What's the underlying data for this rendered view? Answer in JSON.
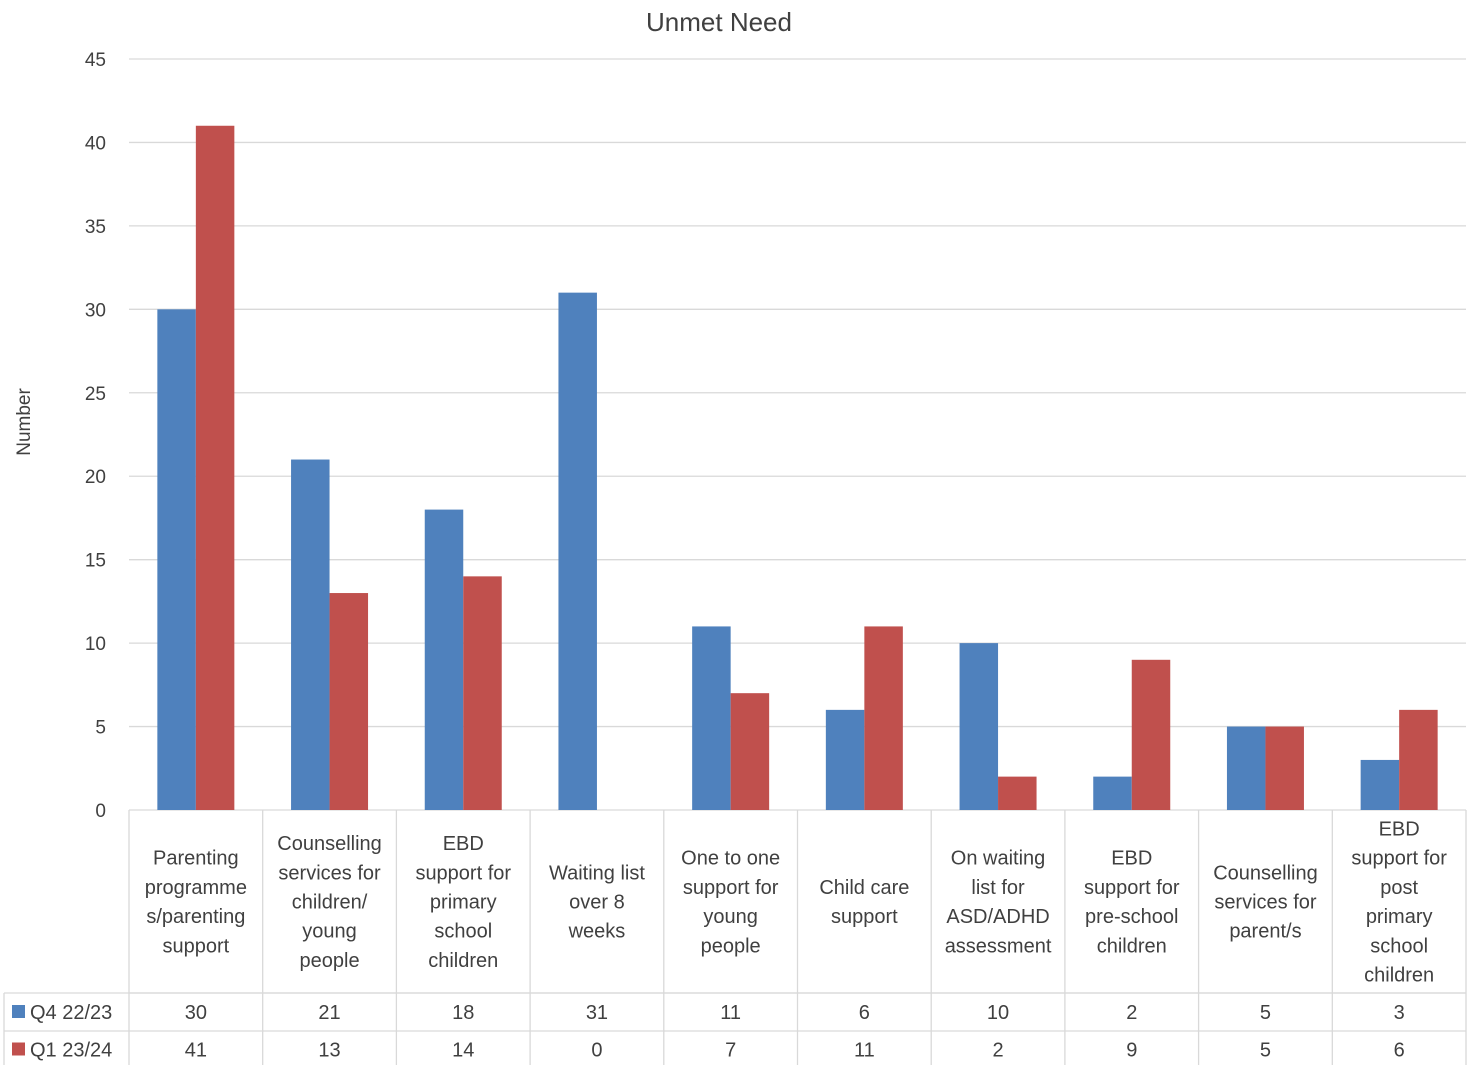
{
  "chart_data": {
    "type": "bar",
    "title": "Unmet Need",
    "xlabel": "",
    "ylabel": "Number",
    "ylim": [
      0,
      45
    ],
    "yticks": [
      0,
      5,
      10,
      15,
      20,
      25,
      30,
      35,
      40,
      45
    ],
    "grid": true,
    "legend": "data-table-left",
    "categories": [
      [
        "Parenting",
        "programme",
        "s/parenting",
        "support"
      ],
      [
        "Counselling",
        "services for",
        "children/",
        "young",
        "people"
      ],
      [
        "EBD",
        "support for",
        "primary",
        "school",
        "children"
      ],
      [
        "Waiting list",
        "over 8",
        "weeks"
      ],
      [
        "One to one",
        "support for",
        "young",
        "people"
      ],
      [
        "Child care",
        "support"
      ],
      [
        "On waiting",
        "list for",
        "ASD/ADHD",
        "assessment"
      ],
      [
        "EBD",
        "support for",
        "pre-school",
        "children"
      ],
      [
        "Counselling",
        "services for",
        "parent/s"
      ],
      [
        "EBD",
        "support for",
        "post",
        "primary",
        "school",
        "children"
      ]
    ],
    "series": [
      {
        "name": "Q4 22/23",
        "color": "#4F81BD",
        "values": [
          30,
          21,
          18,
          31,
          11,
          6,
          10,
          2,
          5,
          3
        ]
      },
      {
        "name": "Q1 23/24",
        "color": "#C0504D",
        "values": [
          41,
          13,
          14,
          0,
          7,
          11,
          2,
          9,
          5,
          6
        ]
      }
    ]
  }
}
